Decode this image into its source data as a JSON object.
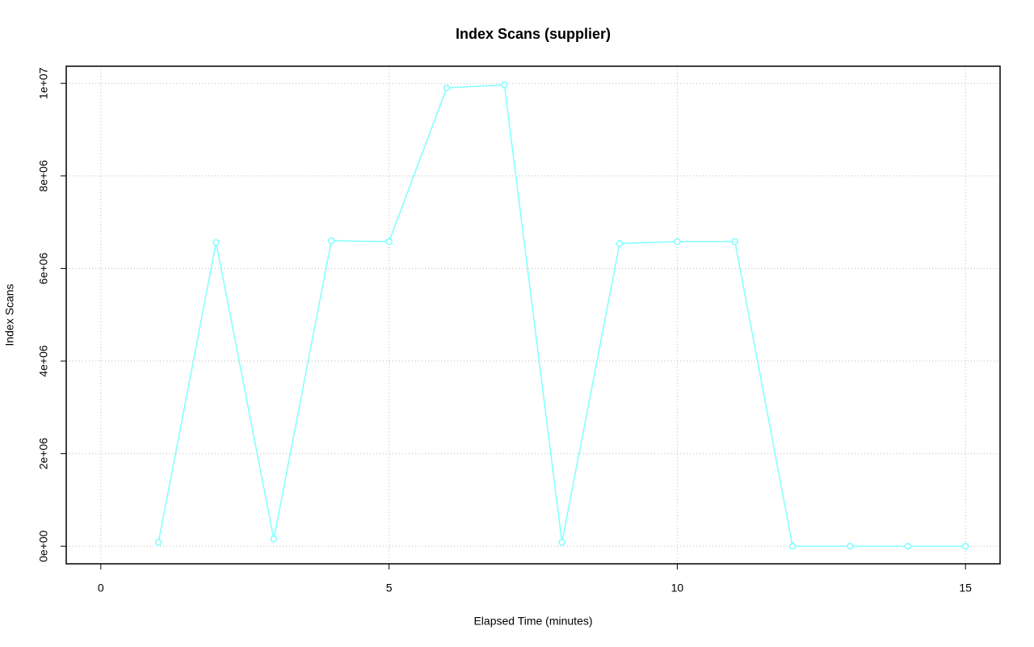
{
  "chart_data": {
    "type": "line",
    "title": "Index Scans (supplier)",
    "x_label": "Elapsed Time (minutes)",
    "y_label": "Index Scans",
    "x": [
      1,
      2,
      3,
      4,
      5,
      6,
      7,
      8,
      9,
      10,
      11,
      12,
      13,
      14,
      15
    ],
    "series": [
      {
        "name": "supplier",
        "color": "#7fffff",
        "values": [
          87000,
          6560000,
          157000,
          6600000,
          6580000,
          9900000,
          9970000,
          87000,
          6540000,
          6580000,
          6580000,
          0,
          0,
          0,
          0
        ]
      }
    ],
    "xlim": [
      -0.6,
      15.6
    ],
    "xticks": [
      0,
      5,
      10,
      15
    ],
    "ylim": [
      -380000,
      10370000
    ],
    "yticks": [
      {
        "value": 0,
        "label": "0e+00"
      },
      {
        "value": 2000000,
        "label": "2e+06"
      },
      {
        "value": 4000000,
        "label": "4e+06"
      },
      {
        "value": 6000000,
        "label": "6e+06"
      },
      {
        "value": 8000000,
        "label": "8e+06"
      },
      {
        "value": 10000000,
        "label": "1e+07"
      }
    ],
    "grid": true
  }
}
